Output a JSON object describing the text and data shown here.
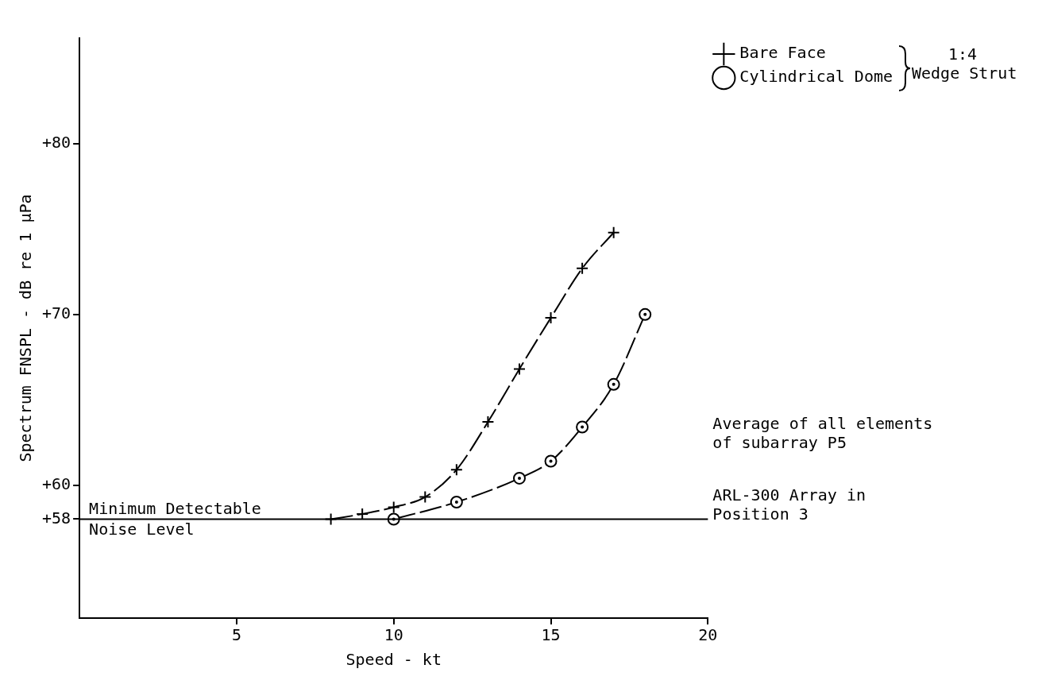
{
  "chart_data": {
    "type": "line",
    "xlabel": "Speed - kt",
    "ylabel": "Spectrum FNSPL - dB re 1 µPa",
    "xlim": [
      0,
      20
    ],
    "xticks": [
      5,
      10,
      15,
      20
    ],
    "ylim": [
      52.2,
      86.2
    ],
    "yticks": [
      {
        "value": 58,
        "label": "+58"
      },
      {
        "value": 60,
        "label": "+60"
      },
      {
        "value": 70,
        "label": "+70"
      },
      {
        "value": 80,
        "label": "+80"
      }
    ],
    "series": [
      {
        "name": "Bare Face",
        "color": "#000000",
        "marker": "cross",
        "x": [
          8,
          9,
          10,
          11,
          12,
          13,
          14,
          15,
          16,
          17
        ],
        "values": [
          58,
          58.3,
          58.7,
          59.3,
          60.9,
          63.7,
          66.8,
          69.8,
          72.7,
          74.8
        ]
      },
      {
        "name": "Cylindrical Dome",
        "color": "#000000",
        "marker": "circle",
        "x": [
          10,
          12,
          14,
          15,
          16,
          17,
          18
        ],
        "values": [
          58,
          59.0,
          60.4,
          61.4,
          63.4,
          65.9,
          70
        ]
      }
    ],
    "line_style": "dashed",
    "grid": false,
    "legend": "right",
    "ref_lines": [
      {
        "axis": "y",
        "value": 58,
        "label": "Minimum Detectable\nNoise Level",
        "color": "#000000"
      }
    ],
    "annotations": [
      "1:4\nWedge Strut",
      "Average of all elements\nof subarray P5",
      "ARL-300 Array in\nPosition 3"
    ]
  }
}
